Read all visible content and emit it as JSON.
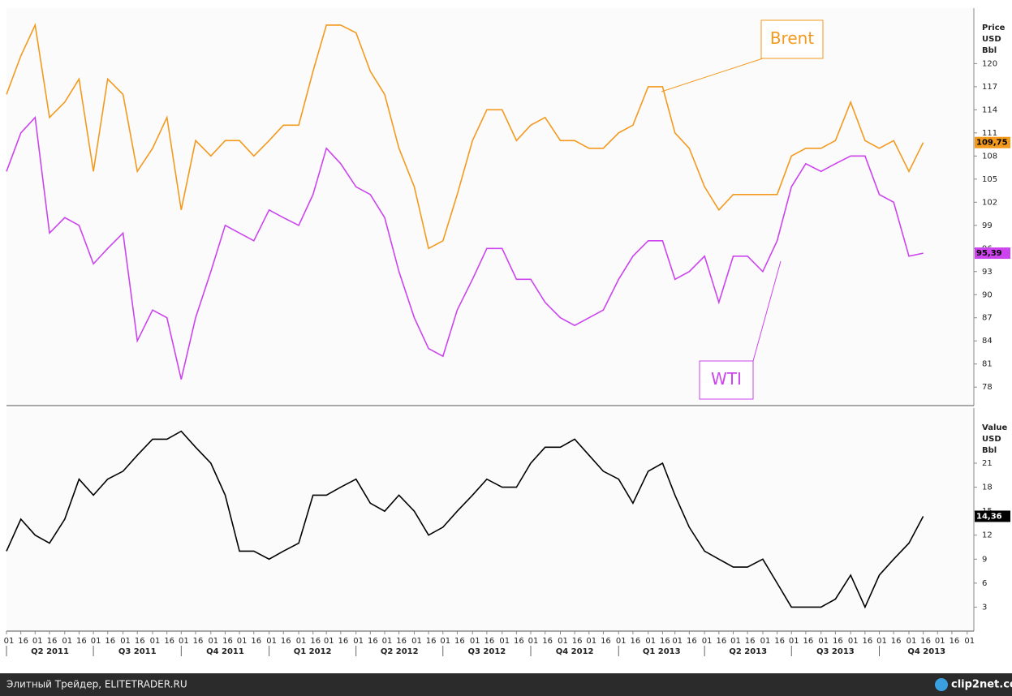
{
  "chart_data": [
    {
      "type": "line",
      "y_title": [
        "Price",
        "USD",
        "Bbl"
      ],
      "xlim": [
        "2011-04-01",
        "2014-01-08"
      ],
      "ylim": [
        75.6,
        127.2
      ],
      "yticks": [
        78,
        81,
        84,
        87,
        90,
        93,
        96,
        99,
        102,
        105,
        108,
        111,
        114,
        117,
        120
      ],
      "x": [
        "2011-04-01",
        "2011-04-16",
        "2011-05-01",
        "2011-05-16",
        "2011-06-01",
        "2011-06-16",
        "2011-07-01",
        "2011-07-16",
        "2011-08-01",
        "2011-08-16",
        "2011-09-01",
        "2011-09-16",
        "2011-10-01",
        "2011-10-16",
        "2011-11-01",
        "2011-11-16",
        "2011-12-01",
        "2011-12-16",
        "2012-01-01",
        "2012-01-16",
        "2012-02-01",
        "2012-02-16",
        "2012-03-01",
        "2012-03-16",
        "2012-04-01",
        "2012-04-16",
        "2012-05-01",
        "2012-05-16",
        "2012-06-01",
        "2012-06-16",
        "2012-07-01",
        "2012-07-16",
        "2012-08-01",
        "2012-08-16",
        "2012-09-01",
        "2012-09-16",
        "2012-10-01",
        "2012-10-16",
        "2012-11-01",
        "2012-11-16",
        "2012-12-01",
        "2012-12-16",
        "2013-01-01",
        "2013-01-16",
        "2013-02-01",
        "2013-02-16",
        "2013-03-01",
        "2013-03-16",
        "2013-04-01",
        "2013-04-16",
        "2013-05-01",
        "2013-05-16",
        "2013-06-01",
        "2013-06-16",
        "2013-07-01",
        "2013-07-16",
        "2013-08-01",
        "2013-08-16",
        "2013-09-01",
        "2013-09-16",
        "2013-10-01",
        "2013-10-16",
        "2013-11-01",
        "2013-11-16"
      ],
      "series": [
        {
          "name": "Brent",
          "color": "#f39a1e",
          "values": [
            116,
            121,
            125,
            113,
            115,
            118,
            106,
            118,
            116,
            106,
            109,
            113,
            101,
            110,
            108,
            110,
            110,
            108,
            110,
            112,
            112,
            119,
            125,
            125,
            124,
            119,
            116,
            109,
            104,
            96,
            97,
            103,
            110,
            114,
            114,
            110,
            112,
            113,
            110,
            110,
            109,
            109,
            111,
            112,
            117,
            117,
            111,
            109,
            104,
            101,
            103,
            103,
            103,
            103,
            108,
            109,
            109,
            110,
            115,
            110,
            109,
            110,
            106,
            109.75
          ],
          "value_labels": [
            null,
            null,
            null,
            null,
            null,
            null,
            null,
            null,
            null,
            null,
            null,
            null,
            null,
            null,
            null,
            null,
            null,
            null,
            null,
            null,
            null,
            null,
            null,
            null,
            null,
            null,
            null,
            null,
            null,
            null,
            null,
            null,
            null,
            null,
            null,
            null,
            null,
            null,
            null,
            null,
            null,
            null,
            null,
            null,
            null,
            null,
            null,
            null,
            null,
            null,
            null,
            null,
            null,
            null,
            null,
            null,
            null,
            null,
            null,
            null,
            null,
            null,
            null,
            "109,75"
          ]
        },
        {
          "name": "WTI",
          "color": "#cc44ee",
          "values": [
            106,
            111,
            113,
            98,
            100,
            99,
            94,
            96,
            98,
            84,
            88,
            87,
            79,
            87,
            93,
            99,
            98,
            97,
            101,
            100,
            99,
            103,
            109,
            107,
            104,
            103,
            100,
            93,
            87,
            83,
            82,
            88,
            92,
            96,
            96,
            92,
            92,
            89,
            87,
            86,
            87,
            88,
            92,
            95,
            97,
            97,
            92,
            93,
            95,
            89,
            95,
            95,
            93,
            97,
            104,
            107,
            106,
            107,
            108,
            108,
            103,
            102,
            95,
            95.39
          ],
          "value_labels": [
            null,
            null,
            null,
            null,
            null,
            null,
            null,
            null,
            null,
            null,
            null,
            null,
            null,
            null,
            null,
            null,
            null,
            null,
            null,
            null,
            null,
            null,
            null,
            null,
            null,
            null,
            null,
            null,
            null,
            null,
            null,
            null,
            null,
            null,
            null,
            null,
            null,
            null,
            null,
            null,
            null,
            null,
            null,
            null,
            null,
            null,
            null,
            null,
            null,
            null,
            null,
            null,
            null,
            null,
            null,
            null,
            null,
            null,
            null,
            null,
            null,
            null,
            null,
            "95,39"
          ]
        }
      ],
      "annotations": [
        {
          "text": "Brent",
          "series": 0
        },
        {
          "text": "WTI",
          "series": 1
        }
      ]
    },
    {
      "type": "line",
      "y_title": [
        "Value",
        "USD",
        "Bbl"
      ],
      "xlim": [
        "2011-04-01",
        "2014-01-08"
      ],
      "ylim": [
        0,
        27.9
      ],
      "yticks": [
        3,
        6,
        9,
        12,
        15,
        18,
        21
      ],
      "x": [
        "2011-04-01",
        "2011-04-16",
        "2011-05-01",
        "2011-05-16",
        "2011-06-01",
        "2011-06-16",
        "2011-07-01",
        "2011-07-16",
        "2011-08-01",
        "2011-08-16",
        "2011-09-01",
        "2011-09-16",
        "2011-10-01",
        "2011-10-16",
        "2011-11-01",
        "2011-11-16",
        "2011-12-01",
        "2011-12-16",
        "2012-01-01",
        "2012-01-16",
        "2012-02-01",
        "2012-02-16",
        "2012-03-01",
        "2012-03-16",
        "2012-04-01",
        "2012-04-16",
        "2012-05-01",
        "2012-05-16",
        "2012-06-01",
        "2012-06-16",
        "2012-07-01",
        "2012-07-16",
        "2012-08-01",
        "2012-08-16",
        "2012-09-01",
        "2012-09-16",
        "2012-10-01",
        "2012-10-16",
        "2012-11-01",
        "2012-11-16",
        "2012-12-01",
        "2012-12-16",
        "2013-01-01",
        "2013-01-16",
        "2013-02-01",
        "2013-02-16",
        "2013-03-01",
        "2013-03-16",
        "2013-04-01",
        "2013-04-16",
        "2013-05-01",
        "2013-05-16",
        "2013-06-01",
        "2013-06-16",
        "2013-07-01",
        "2013-07-16",
        "2013-08-01",
        "2013-08-16",
        "2013-09-01",
        "2013-09-16",
        "2013-10-01",
        "2013-10-16",
        "2013-11-01",
        "2013-11-16"
      ],
      "series": [
        {
          "color": "#000000",
          "values": [
            10,
            14,
            12,
            11,
            14,
            19,
            17,
            19,
            20,
            22,
            24,
            24,
            25,
            23,
            21,
            17,
            10,
            10,
            9,
            10,
            11,
            17,
            17,
            18,
            19,
            16,
            15,
            17,
            15,
            12,
            13,
            15,
            17,
            19,
            18,
            18,
            21,
            23,
            23,
            24,
            22,
            20,
            19,
            16,
            20,
            21,
            17,
            13,
            10,
            9,
            8,
            8,
            9,
            6,
            3,
            3,
            3,
            4,
            7,
            3,
            7,
            9,
            11,
            14.36
          ],
          "value_labels": [
            null,
            null,
            null,
            null,
            null,
            null,
            null,
            null,
            null,
            null,
            null,
            null,
            null,
            null,
            null,
            null,
            null,
            null,
            null,
            null,
            null,
            null,
            null,
            null,
            null,
            null,
            null,
            null,
            null,
            null,
            null,
            null,
            null,
            null,
            null,
            null,
            null,
            null,
            null,
            null,
            null,
            null,
            null,
            null,
            null,
            null,
            null,
            null,
            null,
            null,
            null,
            null,
            null,
            null,
            null,
            null,
            null,
            null,
            null,
            null,
            null,
            null,
            null,
            "14,36"
          ]
        }
      ],
      "xticks": [
        {
          "value": "2011-04-01",
          "label": "Q2 2011"
        },
        {
          "value": "2011-07-01",
          "label": "Q3 2011"
        },
        {
          "value": "2011-10-01",
          "label": "Q4 2011"
        },
        {
          "value": "2012-01-01",
          "label": "Q1 2012"
        },
        {
          "value": "2012-04-01",
          "label": "Q2 2012"
        },
        {
          "value": "2012-07-01",
          "label": "Q3 2012"
        },
        {
          "value": "2012-10-01",
          "label": "Q4 2012"
        },
        {
          "value": "2013-01-01",
          "label": "Q1 2013"
        },
        {
          "value": "2013-04-01",
          "label": "Q2 2013"
        },
        {
          "value": "2013-07-01",
          "label": "Q3 2013"
        },
        {
          "value": "2013-10-01",
          "label": "Q4 2013"
        }
      ],
      "minor_xticks": [
        {
          "value": "2011-04-01",
          "label": "01"
        },
        {
          "value": "2011-04-16",
          "label": "16"
        },
        {
          "value": "2011-05-01",
          "label": "01"
        },
        {
          "value": "2011-05-16",
          "label": "16"
        },
        {
          "value": "2011-06-01",
          "label": "01"
        },
        {
          "value": "2011-06-16",
          "label": "16"
        },
        {
          "value": "2011-07-01",
          "label": "01"
        },
        {
          "value": "2011-07-16",
          "label": "16"
        },
        {
          "value": "2011-08-01",
          "label": "01"
        },
        {
          "value": "2011-08-16",
          "label": "16"
        },
        {
          "value": "2011-09-01",
          "label": "01"
        },
        {
          "value": "2011-09-16",
          "label": "16"
        },
        {
          "value": "2011-10-01",
          "label": "01"
        },
        {
          "value": "2011-10-16",
          "label": "16"
        },
        {
          "value": "2011-11-01",
          "label": "01"
        },
        {
          "value": "2011-11-16",
          "label": "16"
        },
        {
          "value": "2011-12-01",
          "label": "01"
        },
        {
          "value": "2011-12-16",
          "label": "16"
        },
        {
          "value": "2012-01-01",
          "label": "01"
        },
        {
          "value": "2012-01-16",
          "label": "16"
        },
        {
          "value": "2012-02-01",
          "label": "01"
        },
        {
          "value": "2012-02-16",
          "label": "16"
        },
        {
          "value": "2012-03-01",
          "label": "01"
        },
        {
          "value": "2012-03-16",
          "label": "16"
        },
        {
          "value": "2012-04-01",
          "label": "01"
        },
        {
          "value": "2012-04-16",
          "label": "16"
        },
        {
          "value": "2012-05-01",
          "label": "01"
        },
        {
          "value": "2012-05-16",
          "label": "16"
        },
        {
          "value": "2012-06-01",
          "label": "01"
        },
        {
          "value": "2012-06-16",
          "label": "16"
        },
        {
          "value": "2012-07-01",
          "label": "01"
        },
        {
          "value": "2012-07-16",
          "label": "16"
        },
        {
          "value": "2012-08-01",
          "label": "01"
        },
        {
          "value": "2012-08-16",
          "label": "16"
        },
        {
          "value": "2012-09-01",
          "label": "01"
        },
        {
          "value": "2012-09-16",
          "label": "16"
        },
        {
          "value": "2012-10-01",
          "label": "01"
        },
        {
          "value": "2012-10-16",
          "label": "16"
        },
        {
          "value": "2012-11-01",
          "label": "01"
        },
        {
          "value": "2012-11-16",
          "label": "16"
        },
        {
          "value": "2012-12-01",
          "label": "01"
        },
        {
          "value": "2012-12-16",
          "label": "16"
        },
        {
          "value": "2013-01-01",
          "label": "01"
        },
        {
          "value": "2013-01-16",
          "label": "16"
        },
        {
          "value": "2013-02-01",
          "label": "01"
        },
        {
          "value": "2013-02-16",
          "label": "16"
        },
        {
          "value": "2013-03-01",
          "label": "01"
        },
        {
          "value": "2013-03-16",
          "label": "16"
        },
        {
          "value": "2013-04-01",
          "label": "01"
        },
        {
          "value": "2013-04-16",
          "label": "16"
        },
        {
          "value": "2013-05-01",
          "label": "01"
        },
        {
          "value": "2013-05-16",
          "label": "16"
        },
        {
          "value": "2013-06-01",
          "label": "01"
        },
        {
          "value": "2013-06-16",
          "label": "16"
        },
        {
          "value": "2013-07-01",
          "label": "01"
        },
        {
          "value": "2013-07-16",
          "label": "16"
        },
        {
          "value": "2013-08-01",
          "label": "01"
        },
        {
          "value": "2013-08-16",
          "label": "16"
        },
        {
          "value": "2013-09-01",
          "label": "01"
        },
        {
          "value": "2013-09-16",
          "label": "16"
        },
        {
          "value": "2013-10-01",
          "label": "01"
        },
        {
          "value": "2013-10-16",
          "label": "16"
        },
        {
          "value": "2013-11-01",
          "label": "01"
        },
        {
          "value": "2013-11-16",
          "label": "16"
        },
        {
          "value": "2013-12-01",
          "label": "01"
        },
        {
          "value": "2013-12-16",
          "label": "16"
        },
        {
          "value": "2014-01-01",
          "label": "01"
        }
      ]
    }
  ],
  "footer": {
    "source": "Элитный Трейдер, ELITETRADER.RU",
    "logo": "clip2net.com"
  }
}
